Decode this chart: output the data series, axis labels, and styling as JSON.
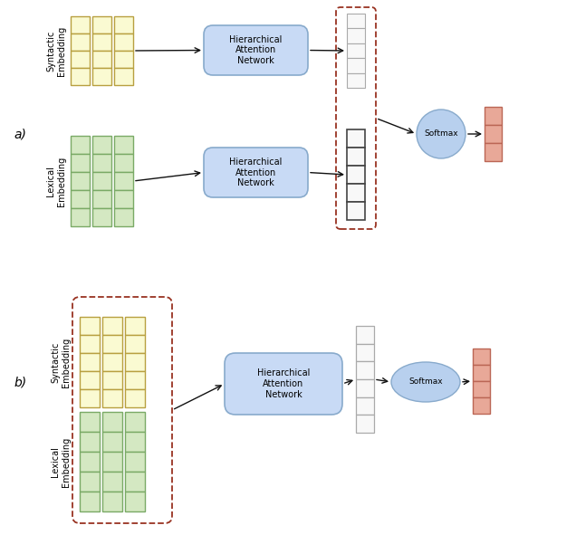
{
  "bg_color": "#ffffff",
  "yellow_fill": "#fafad2",
  "yellow_edge": "#b8a040",
  "green_fill": "#d4e8c2",
  "green_edge": "#7aaa66",
  "blue_fill": "#c8daf5",
  "blue_edge": "#88aacc",
  "red_fill": "#e8a898",
  "red_edge": "#bb6655",
  "gray_fill": "#f8f8f8",
  "gray_edge_light": "#aaaaaa",
  "gray_edge_dark": "#444444",
  "dashed_box_color": "#993322",
  "softmax_fill": "#b8d0ee",
  "softmax_edge": "#88aacc",
  "arrow_color": "#111111",
  "label_a": "a)",
  "label_b": "b)",
  "syntactic_label": "Syntactic\nEmbedding",
  "lexical_label": "Lexical\nEmbedding",
  "han_label": "Hierarchical\nAttention\nNetwork",
  "softmax_label": "Softmax"
}
